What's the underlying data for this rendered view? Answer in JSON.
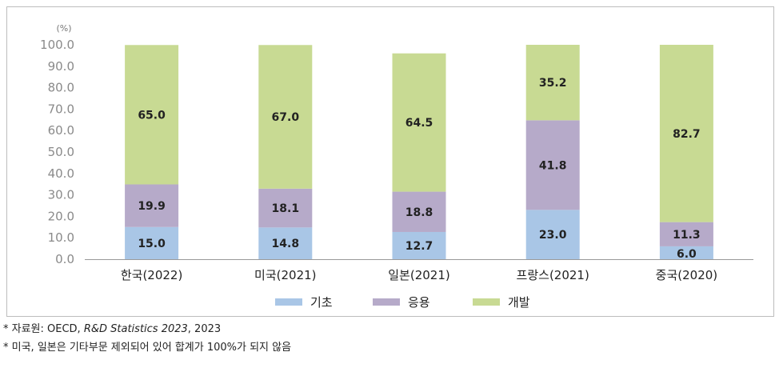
{
  "chart_data": {
    "type": "bar",
    "stacked": true,
    "unit_label": "(%)",
    "categories": [
      "한국(2022)",
      "미국(2021)",
      "일본(2021)",
      "프랑스(2021)",
      "중국(2020)"
    ],
    "series": [
      {
        "name": "기초",
        "values": [
          15.0,
          14.8,
          12.7,
          23.0,
          6.0
        ],
        "color": "#a9c6e6"
      },
      {
        "name": "응용",
        "values": [
          19.9,
          18.1,
          18.8,
          41.8,
          11.3
        ],
        "color": "#b6aac9"
      },
      {
        "name": "개발",
        "values": [
          65.0,
          67.0,
          64.5,
          35.2,
          82.7
        ],
        "color": "#c8da93"
      }
    ],
    "ylim": [
      0,
      100
    ],
    "yticks": [
      "0.0",
      "10.0",
      "20.0",
      "30.0",
      "40.0",
      "50.0",
      "60.0",
      "70.0",
      "80.0",
      "90.0",
      "100.0"
    ],
    "grid": false,
    "legend_position": "bottom-center"
  },
  "notes": {
    "source_prefix": "* 자료원: OECD, ",
    "source_title": "R&D Statistics 2023",
    "source_suffix": ", 2023",
    "remark": "* 미국, 일본은 기타부문 제외되어 있어 합계가 100%가 되지 않음"
  }
}
